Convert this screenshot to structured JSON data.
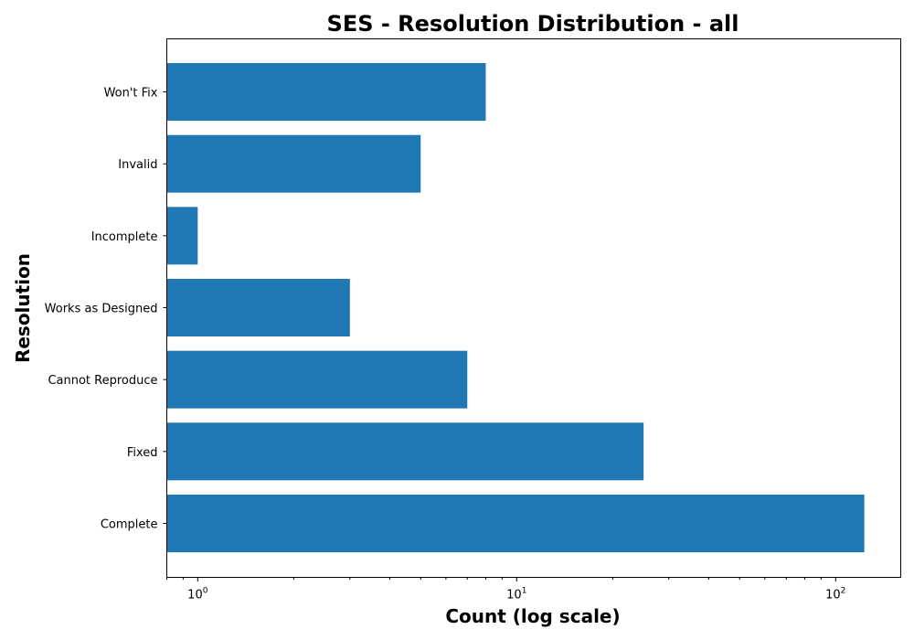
{
  "chart_data": {
    "type": "bar",
    "orientation": "horizontal",
    "title": "SES - Resolution Distribution - all",
    "xlabel": "Count (log scale)",
    "ylabel": "Resolution",
    "x_scale": "log",
    "xlim": [
      0.8,
      160
    ],
    "x_ticks": [
      1,
      10,
      100
    ],
    "x_tick_labels": {
      "base": "10",
      "exponents": [
        "0",
        "1",
        "2"
      ]
    },
    "categories": [
      "Won't Fix",
      "Invalid",
      "Incomplete",
      "Works as Designed",
      "Cannot Reproduce",
      "Fixed",
      "Complete"
    ],
    "values": [
      8,
      5,
      1,
      3,
      7,
      25,
      123
    ],
    "grid": false,
    "legend": "none",
    "bar_color": "#1f77b4"
  }
}
